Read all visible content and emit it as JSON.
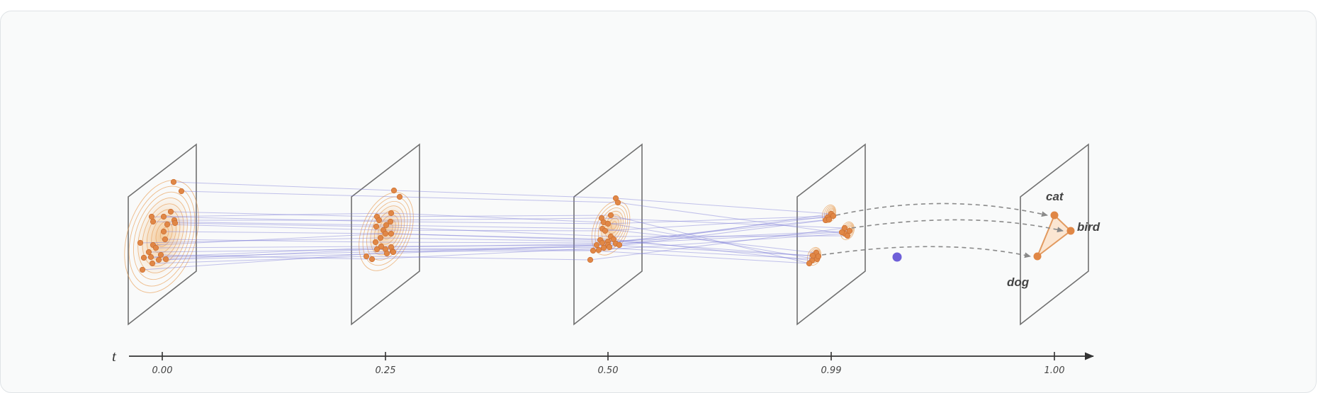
{
  "diagram": {
    "time_axis": {
      "label": "t",
      "ticks": [
        "0.00",
        "0.25",
        "0.50",
        "0.99",
        "1.00"
      ]
    },
    "classes": [
      "cat",
      "bird",
      "dog"
    ],
    "colors": {
      "sample_point": "#e08746",
      "density_contour": "#e9a663",
      "trajectory": "#7b7ad8",
      "current_state_dot": "#6e5fd8",
      "plane_outline": "#707070",
      "axis": "#333333"
    }
  }
}
